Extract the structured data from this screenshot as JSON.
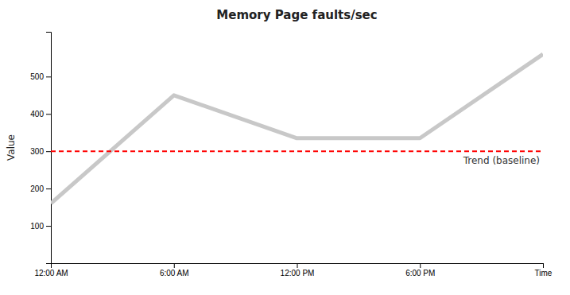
{
  "chart_data": {
    "type": "line",
    "title": "Memory Page faults/sec",
    "ylabel": "Value",
    "x": [
      0,
      6,
      12,
      18,
      24
    ],
    "values": [
      160,
      450,
      335,
      335,
      560
    ],
    "color": "#c8c8c8",
    "xlim": [
      0,
      24
    ],
    "xticks": [
      {
        "value": 0,
        "label": "12:00 AM"
      },
      {
        "value": 6,
        "label": "6:00 AM"
      },
      {
        "value": 12,
        "label": "12:00 PM"
      },
      {
        "value": 18,
        "label": "6:00 PM"
      },
      {
        "value": 24,
        "label": "Time"
      }
    ],
    "ylim": [
      0,
      620
    ],
    "yticks": [
      100,
      200,
      300,
      400,
      500
    ],
    "grid": false,
    "annotations": [
      {
        "text": "Trend (baseline)",
        "y": 300,
        "color": "#ff0000",
        "line_style": "dashed"
      }
    ]
  }
}
